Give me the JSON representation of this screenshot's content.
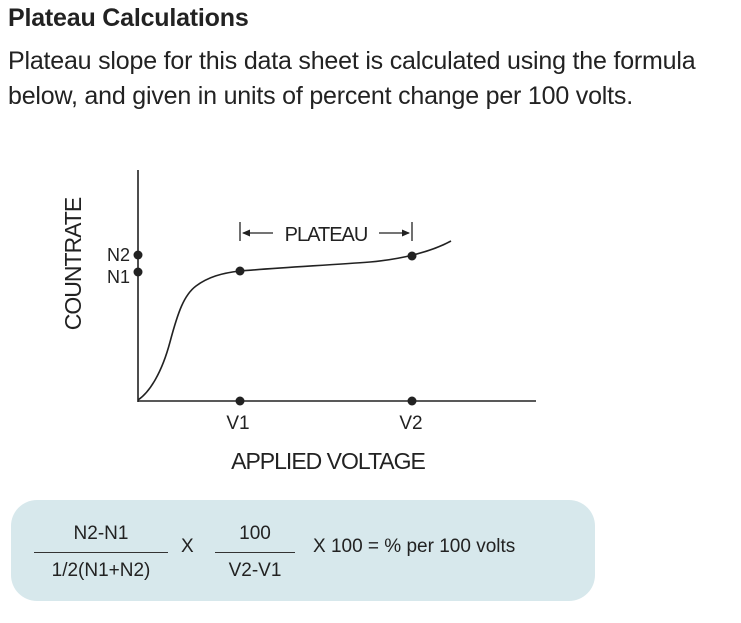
{
  "section": {
    "title": "Plateau Calculations",
    "intro": "Plateau slope for this data sheet is calculated using the formula below, and given in units of percent change per 100 volts."
  },
  "diagram": {
    "y_axis_label": "COUNTRATE",
    "x_axis_label": "APPLIED VOLTAGE",
    "n2_label": "N2",
    "n1_label": "N1",
    "v1_label": "V1",
    "v2_label": "V2",
    "plateau_label": "PLATEAU"
  },
  "formula": {
    "fraction1_numerator": "N2-N1",
    "fraction1_denominator": "1/2(N1+N2)",
    "times": "X",
    "fraction2_numerator": "100",
    "fraction2_denominator": "V2-V1",
    "tail": "X 100 = % per 100 volts"
  }
}
